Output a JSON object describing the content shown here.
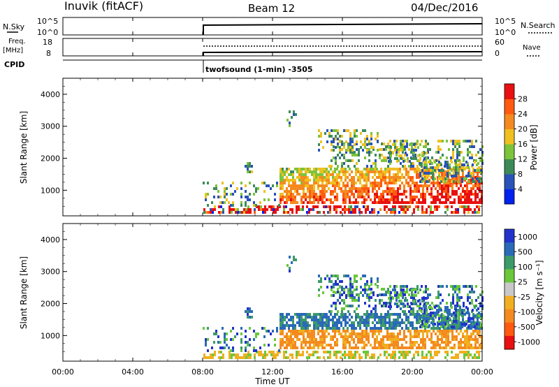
{
  "header": {
    "station": "Inuvik (fitACF)",
    "beam": "Beam 12",
    "date": "04/Dec/2016"
  },
  "top_panels": {
    "nsky_label": "N.Sky",
    "nsky_tick_top": "10^5",
    "nsky_tick_bottom": "10^0",
    "nsearch_label": "N.Search",
    "nsearch_tick_top": "10^5",
    "nsearch_tick_bottom": "10^0",
    "freq_label_1": "Freq.",
    "freq_label_2": "[MHz]",
    "freq_tick_top": "18",
    "freq_tick_bottom": "8",
    "nave_label": "Nave",
    "nave_tick_top": "60",
    "nave_tick_bottom": "0",
    "cpid_label": "CPID",
    "cpid_text": "twofsound (1-min) -3505"
  },
  "chart_data": [
    {
      "type": "heatmap",
      "name": "power",
      "ylabel": "Slant Range [km]",
      "ylim": [
        200,
        4500
      ],
      "yticks": [
        "1000",
        "2000",
        "3000",
        "4000"
      ],
      "xlim": [
        "00:00",
        "24:00"
      ],
      "colorbar_label": "Power [dB]",
      "colorbar_ticks": [
        "4",
        "8",
        "12",
        "16",
        "20",
        "24",
        "28"
      ],
      "colorbar_colors": [
        "#0022ee",
        "#2a52b8",
        "#3d8a58",
        "#7cc43a",
        "#f0c020",
        "#f48a20",
        "#ff5a10",
        "#e81010"
      ],
      "data_start": "08:00"
    },
    {
      "type": "heatmap",
      "name": "velocity",
      "ylabel": "Slant Range [km]",
      "ylim": [
        200,
        4500
      ],
      "yticks": [
        "1000",
        "2000",
        "3000",
        "4000"
      ],
      "xlabel": "Time UT",
      "xticks": [
        "00:00",
        "04:00",
        "08:00",
        "12:00",
        "16:00",
        "20:00",
        "00:00"
      ],
      "colorbar_label": "Velocity [m s⁻¹]",
      "colorbar_ticks": [
        "1000",
        "500",
        "100",
        "25",
        "-25",
        "-100",
        "-500",
        "-1000"
      ],
      "colorbar_colors": [
        "#2233cc",
        "#2a6ab8",
        "#3d9a6a",
        "#6ac83a",
        "#c8c8c8",
        "#f0b020",
        "#f48a20",
        "#ff5a10",
        "#e81010"
      ]
    }
  ]
}
